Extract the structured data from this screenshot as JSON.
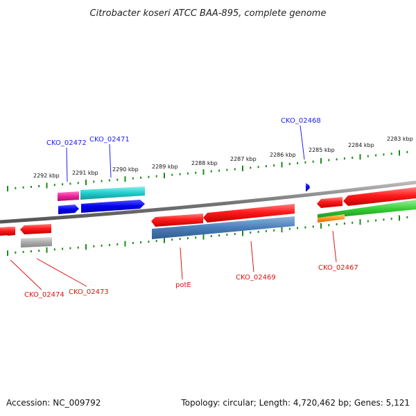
{
  "title": "Citrobacter koseri ATCC BAA-895, complete genome",
  "footer": {
    "accession": "Accession: NC_009792",
    "topology": "Topology: circular; Length: 4,720,462 bp; Genes: 5,121"
  },
  "ruler": {
    "ticks": [
      "2292 kbp",
      "2291 kbp",
      "2290 kbp",
      "2289 kbp",
      "2288 kbp",
      "2287 kbp",
      "2286 kbp",
      "2285 kbp",
      "2284 kbp",
      "2283 kbp"
    ]
  },
  "gene_labels": {
    "cko_02472": "CKO_02472",
    "cko_02471": "CKO_02471",
    "cko_02468": "CKO_02468",
    "cko_02474": "CKO_02474",
    "cko_02473": "CKO_02473",
    "pote": "potE",
    "cko_02469": "CKO_02469",
    "cko_02467": "CKO_02467"
  },
  "colors": {
    "red": "#ff1a1a",
    "blue": "#0000ee",
    "cyan": "#22cccc",
    "magenta": "#ee2299",
    "steelblue": "#4a7eb8",
    "green": "#33cc33",
    "orange": "#ff9922",
    "gray": "#aaaaaa",
    "tick_green": "#1a8a1a",
    "backbone": "#7a7a7a"
  }
}
